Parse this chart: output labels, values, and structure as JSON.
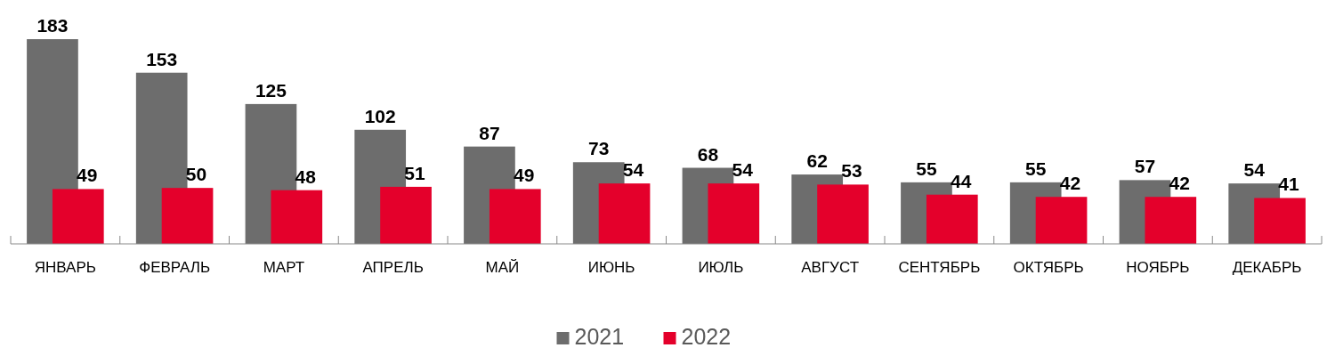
{
  "chart_data": {
    "type": "bar",
    "categories": [
      "ЯНВАРЬ",
      "ФЕВРАЛЬ",
      "МАРТ",
      "АПРЕЛЬ",
      "МАЙ",
      "ИЮНЬ",
      "ИЮЛЬ",
      "АВГУСТ",
      "СЕНТЯБРЬ",
      "ОКТЯБРЬ",
      "НОЯБРЬ",
      "ДЕКАБРЬ"
    ],
    "series": [
      {
        "name": "2021",
        "color": "#6d6d6d",
        "values": [
          183,
          153,
          125,
          102,
          87,
          73,
          68,
          62,
          55,
          55,
          57,
          54
        ]
      },
      {
        "name": "2022",
        "color": "#e4002b",
        "values": [
          49,
          50,
          48,
          51,
          49,
          54,
          54,
          53,
          44,
          42,
          42,
          41
        ]
      }
    ],
    "data_labels": true,
    "legend": "bottom",
    "grid": false
  }
}
